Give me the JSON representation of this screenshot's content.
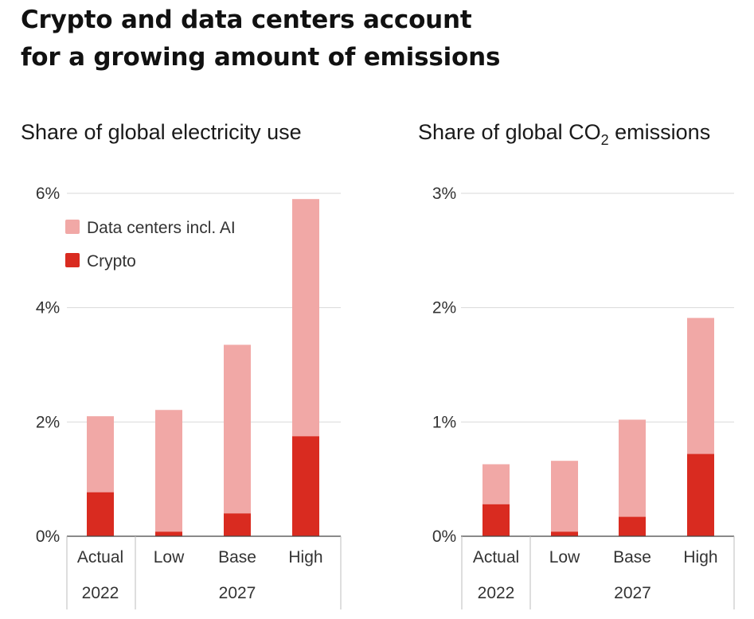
{
  "title_lines": [
    "Crypto and data centers account",
    "for a growing amount of emissions"
  ],
  "colors": {
    "data_centers": "#f1a8a6",
    "crypto": "#d92b20",
    "grid": "#d9d9d9",
    "axis": "#444444"
  },
  "chart_data": [
    {
      "type": "bar",
      "stacked": true,
      "title": "Share of global electricity use",
      "ylim": [
        0,
        6
      ],
      "yticks": [
        0,
        2,
        4,
        6
      ],
      "ytick_labels": [
        "0%",
        "2%",
        "4%",
        "6%"
      ],
      "categories": [
        "Actual",
        "Low",
        "Base",
        "High"
      ],
      "group_labels": [
        {
          "label": "2022",
          "categories": [
            "Actual"
          ]
        },
        {
          "label": "2027",
          "categories": [
            "Low",
            "Base",
            "High"
          ]
        }
      ],
      "legend": {
        "position": "top-left",
        "entries": [
          "Data centers incl. AI",
          "Crypto"
        ]
      },
      "series": [
        {
          "name": "Crypto",
          "values": [
            0.77,
            0.08,
            0.4,
            1.75
          ]
        },
        {
          "name": "Data centers incl. AI",
          "values": [
            1.33,
            2.13,
            2.95,
            4.15
          ]
        }
      ]
    },
    {
      "type": "bar",
      "stacked": true,
      "title": "Share of global CO₂ emissions",
      "title_main": "Share of global CO",
      "title_sub": "2",
      "title_tail": " emissions",
      "ylim": [
        0,
        3
      ],
      "yticks": [
        0,
        1,
        2,
        3
      ],
      "ytick_labels": [
        "0%",
        "1%",
        "2%",
        "3%"
      ],
      "categories": [
        "Actual",
        "Low",
        "Base",
        "High"
      ],
      "group_labels": [
        {
          "label": "2022",
          "categories": [
            "Actual"
          ]
        },
        {
          "label": "2027",
          "categories": [
            "Low",
            "Base",
            "High"
          ]
        }
      ],
      "series": [
        {
          "name": "Crypto",
          "values": [
            0.28,
            0.04,
            0.17,
            0.72
          ]
        },
        {
          "name": "Data centers incl. AI",
          "values": [
            0.35,
            0.62,
            0.85,
            1.19
          ]
        }
      ]
    }
  ]
}
